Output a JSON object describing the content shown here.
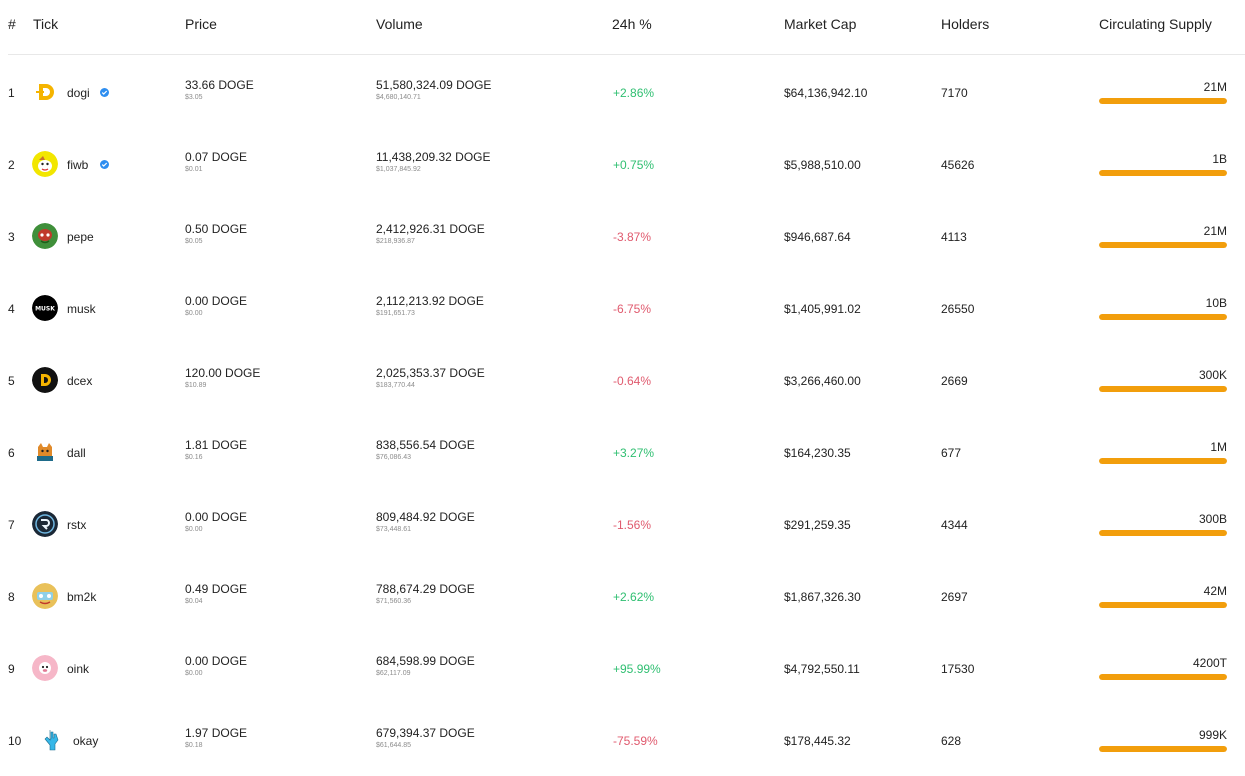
{
  "header": {
    "index": "#",
    "tick": "Tick",
    "price": "Price",
    "volume": "Volume",
    "change": "24h %",
    "market_cap": "Market Cap",
    "holders": "Holders",
    "supply": "Circulating Supply"
  },
  "colors": {
    "positive": "#2fbf71",
    "negative": "#e05a6e",
    "supply_bar": "#f29e0c",
    "verified": "#2e8ef0"
  },
  "rows": [
    {
      "index": "1",
      "tick": "dogi",
      "verified": true,
      "logo_icon": "dogi-logo-icon",
      "price": "33.66 DOGE",
      "price_usd": "$3.05",
      "volume": "51,580,324.09 DOGE",
      "volume_usd": "$4,680,140.71",
      "change": "+2.86%",
      "market_cap": "$64,136,942.10",
      "holders": "7170",
      "supply": "21M",
      "supply_progress": 1.0
    },
    {
      "index": "2",
      "tick": "fiwb",
      "verified": true,
      "logo_icon": "fiwb-logo-icon",
      "price": "0.07 DOGE",
      "price_usd": "$0.01",
      "volume": "11,438,209.32 DOGE",
      "volume_usd": "$1,037,845.92",
      "change": "+0.75%",
      "market_cap": "$5,988,510.00",
      "holders": "45626",
      "supply": "1B",
      "supply_progress": 1.0
    },
    {
      "index": "3",
      "tick": "pepe",
      "verified": false,
      "logo_icon": "pepe-logo-icon",
      "price": "0.50 DOGE",
      "price_usd": "$0.05",
      "volume": "2,412,926.31 DOGE",
      "volume_usd": "$218,936.87",
      "change": "-3.87%",
      "market_cap": "$946,687.64",
      "holders": "4113",
      "supply": "21M",
      "supply_progress": 1.0
    },
    {
      "index": "4",
      "tick": "musk",
      "verified": false,
      "logo_icon": "musk-logo-icon",
      "price": "0.00 DOGE",
      "price_usd": "$0.00",
      "volume": "2,112,213.92 DOGE",
      "volume_usd": "$191,651.73",
      "change": "-6.75%",
      "market_cap": "$1,405,991.02",
      "holders": "26550",
      "supply": "10B",
      "supply_progress": 1.0
    },
    {
      "index": "5",
      "tick": "dcex",
      "verified": false,
      "logo_icon": "dcex-logo-icon",
      "price": "120.00 DOGE",
      "price_usd": "$10.89",
      "volume": "2,025,353.37 DOGE",
      "volume_usd": "$183,770.44",
      "change": "-0.64%",
      "market_cap": "$3,266,460.00",
      "holders": "2669",
      "supply": "300K",
      "supply_progress": 1.0
    },
    {
      "index": "6",
      "tick": "dall",
      "verified": false,
      "logo_icon": "dall-logo-icon",
      "price": "1.81 DOGE",
      "price_usd": "$0.16",
      "volume": "838,556.54 DOGE",
      "volume_usd": "$76,086.43",
      "change": "+3.27%",
      "market_cap": "$164,230.35",
      "holders": "677",
      "supply": "1M",
      "supply_progress": 1.0
    },
    {
      "index": "7",
      "tick": "rstx",
      "verified": false,
      "logo_icon": "rstx-logo-icon",
      "price": "0.00 DOGE",
      "price_usd": "$0.00",
      "volume": "809,484.92 DOGE",
      "volume_usd": "$73,448.61",
      "change": "-1.56%",
      "market_cap": "$291,259.35",
      "holders": "4344",
      "supply": "300B",
      "supply_progress": 1.0
    },
    {
      "index": "8",
      "tick": "bm2k",
      "verified": false,
      "logo_icon": "bm2k-logo-icon",
      "price": "0.49 DOGE",
      "price_usd": "$0.04",
      "volume": "788,674.29 DOGE",
      "volume_usd": "$71,560.36",
      "change": "+2.62%",
      "market_cap": "$1,867,326.30",
      "holders": "2697",
      "supply": "42M",
      "supply_progress": 1.0
    },
    {
      "index": "9",
      "tick": "oink",
      "verified": false,
      "logo_icon": "oink-logo-icon",
      "price": "0.00 DOGE",
      "price_usd": "$0.00",
      "volume": "684,598.99 DOGE",
      "volume_usd": "$62,117.09",
      "change": "+95.99%",
      "market_cap": "$4,792,550.11",
      "holders": "17530",
      "supply": "4200T",
      "supply_progress": 1.0
    },
    {
      "index": "10",
      "tick": "okay",
      "verified": false,
      "logo_icon": "okay-logo-icon",
      "price": "1.97 DOGE",
      "price_usd": "$0.18",
      "volume": "679,394.37 DOGE",
      "volume_usd": "$61,644.85",
      "change": "-75.59%",
      "market_cap": "$178,445.32",
      "holders": "628",
      "supply": "999K",
      "supply_progress": 1.0
    }
  ]
}
